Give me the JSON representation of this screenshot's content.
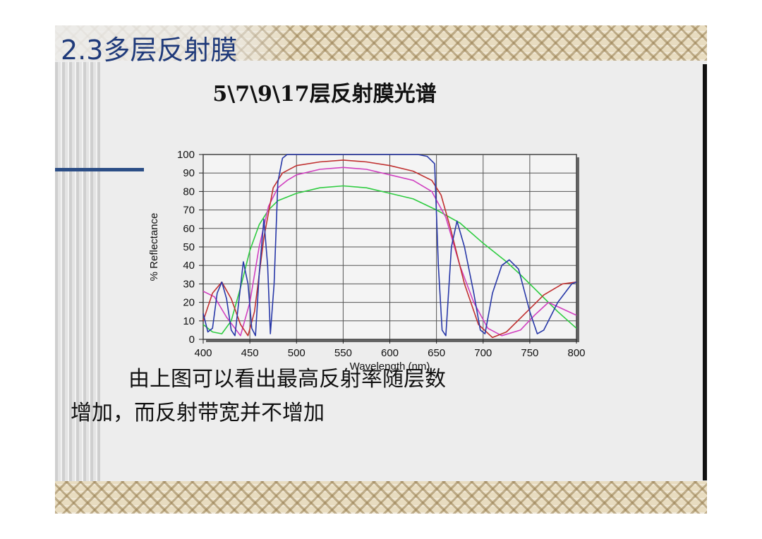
{
  "slide": {
    "title": "2.3多层反射膜",
    "text_line1": "由上图可以看出最高反射率随层数",
    "text_line2": "增加，而反射带宽并不增加"
  },
  "chart_data": {
    "type": "line",
    "title": "5\\7\\9\\17层反射膜光谱",
    "xlabel": "Wavelength (nm)",
    "ylabel": "% Reflectance",
    "xlim": [
      400,
      800
    ],
    "ylim": [
      0,
      100
    ],
    "xticks": [
      400,
      450,
      500,
      550,
      600,
      650,
      700,
      750,
      800
    ],
    "yticks": [
      0,
      10,
      20,
      30,
      40,
      50,
      60,
      70,
      80,
      90,
      100
    ],
    "grid": true,
    "series": [
      {
        "color": "#2ecc40",
        "points": [
          [
            400,
            8
          ],
          [
            410,
            4
          ],
          [
            420,
            3
          ],
          [
            430,
            10
          ],
          [
            440,
            28
          ],
          [
            450,
            48
          ],
          [
            460,
            62
          ],
          [
            470,
            70
          ],
          [
            480,
            75
          ],
          [
            490,
            77
          ],
          [
            500,
            79
          ],
          [
            525,
            82
          ],
          [
            550,
            83
          ],
          [
            575,
            82
          ],
          [
            600,
            79
          ],
          [
            625,
            76
          ],
          [
            650,
            70
          ],
          [
            675,
            63
          ],
          [
            700,
            52
          ],
          [
            725,
            42
          ],
          [
            740,
            35
          ],
          [
            760,
            25
          ],
          [
            780,
            15
          ],
          [
            800,
            6
          ]
        ]
      },
      {
        "color": "#d040c0",
        "points": [
          [
            400,
            26
          ],
          [
            412,
            23
          ],
          [
            425,
            12
          ],
          [
            440,
            2
          ],
          [
            450,
            20
          ],
          [
            460,
            50
          ],
          [
            470,
            72
          ],
          [
            480,
            82
          ],
          [
            490,
            86
          ],
          [
            500,
            89
          ],
          [
            525,
            92
          ],
          [
            550,
            93
          ],
          [
            575,
            92
          ],
          [
            600,
            89
          ],
          [
            625,
            86
          ],
          [
            645,
            80
          ],
          [
            660,
            66
          ],
          [
            675,
            40
          ],
          [
            690,
            20
          ],
          [
            705,
            6
          ],
          [
            720,
            2
          ],
          [
            740,
            5
          ],
          [
            755,
            13
          ],
          [
            770,
            20
          ],
          [
            800,
            13
          ]
        ]
      },
      {
        "color": "#c03030",
        "points": [
          [
            400,
            10
          ],
          [
            410,
            25
          ],
          [
            420,
            31
          ],
          [
            430,
            22
          ],
          [
            440,
            8
          ],
          [
            448,
            2
          ],
          [
            455,
            15
          ],
          [
            465,
            55
          ],
          [
            475,
            82
          ],
          [
            485,
            90
          ],
          [
            500,
            94
          ],
          [
            525,
            96
          ],
          [
            550,
            97
          ],
          [
            575,
            96
          ],
          [
            600,
            94
          ],
          [
            625,
            91
          ],
          [
            645,
            86
          ],
          [
            655,
            78
          ],
          [
            665,
            60
          ],
          [
            680,
            30
          ],
          [
            695,
            8
          ],
          [
            710,
            1
          ],
          [
            725,
            4
          ],
          [
            745,
            14
          ],
          [
            765,
            24
          ],
          [
            785,
            30
          ],
          [
            800,
            31
          ]
        ]
      },
      {
        "color": "#2838a8",
        "points": [
          [
            400,
            14
          ],
          [
            405,
            4
          ],
          [
            410,
            6
          ],
          [
            415,
            25
          ],
          [
            420,
            31
          ],
          [
            425,
            22
          ],
          [
            430,
            5
          ],
          [
            434,
            2
          ],
          [
            438,
            20
          ],
          [
            443,
            42
          ],
          [
            448,
            30
          ],
          [
            452,
            6
          ],
          [
            456,
            2
          ],
          [
            460,
            35
          ],
          [
            465,
            65
          ],
          [
            469,
            40
          ],
          [
            472,
            3
          ],
          [
            476,
            30
          ],
          [
            480,
            85
          ],
          [
            485,
            98
          ],
          [
            490,
            100
          ],
          [
            630,
            100
          ],
          [
            640,
            99
          ],
          [
            648,
            95
          ],
          [
            652,
            40
          ],
          [
            656,
            5
          ],
          [
            660,
            2
          ],
          [
            666,
            50
          ],
          [
            672,
            64
          ],
          [
            680,
            50
          ],
          [
            690,
            25
          ],
          [
            697,
            5
          ],
          [
            702,
            3
          ],
          [
            710,
            25
          ],
          [
            720,
            40
          ],
          [
            728,
            43
          ],
          [
            738,
            38
          ],
          [
            750,
            15
          ],
          [
            758,
            3
          ],
          [
            765,
            5
          ],
          [
            780,
            20
          ],
          [
            795,
            30
          ],
          [
            800,
            31
          ]
        ]
      }
    ]
  }
}
